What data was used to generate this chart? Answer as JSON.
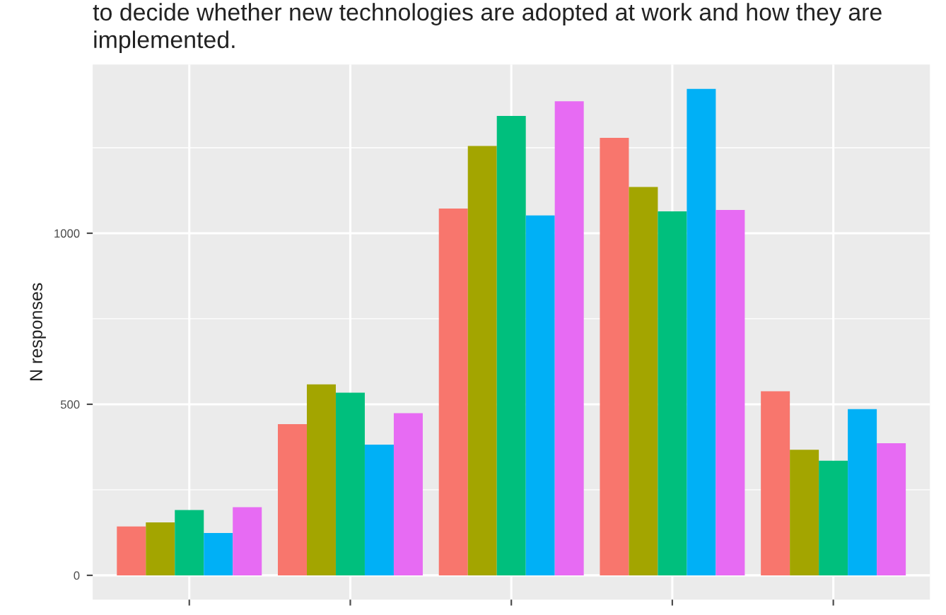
{
  "chart_data": {
    "type": "bar",
    "title": "to decide whether new technologies are adopted at work and how they are implemented.",
    "ylabel": "N responses",
    "categories": [
      null,
      null,
      null,
      null,
      null
    ],
    "series": [
      {
        "color": "#f8766d",
        "values": [
          143,
          442,
          1072,
          1279,
          538
        ]
      },
      {
        "color": "#a3a500",
        "values": [
          155,
          558,
          1255,
          1135,
          367
        ]
      },
      {
        "color": "#00bf7d",
        "values": [
          191,
          534,
          1343,
          1064,
          335
        ]
      },
      {
        "color": "#00b0f6",
        "values": [
          124,
          382,
          1052,
          1422,
          486
        ]
      },
      {
        "color": "#e76bf3",
        "values": [
          199,
          474,
          1386,
          1068,
          386
        ]
      }
    ],
    "ylim": [
      -71,
      1493
    ],
    "yticks": [
      0,
      500,
      1000
    ],
    "grid": true
  }
}
